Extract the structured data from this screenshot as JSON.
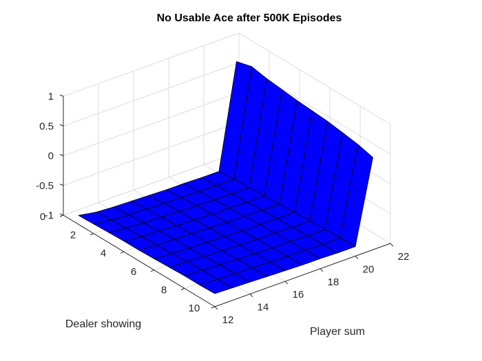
{
  "chart_data": {
    "type": "surface",
    "title": "No Usable Ace after 500K Episodes",
    "xlabel": "Dealer showing",
    "ylabel": "Player sum",
    "zlabel": "",
    "xlim": [
      0,
      10
    ],
    "ylim": [
      12,
      22
    ],
    "zlim": [
      -1,
      1
    ],
    "x_ticks": [
      0,
      2,
      4,
      6,
      8,
      10
    ],
    "y_ticks": [
      12,
      14,
      16,
      18,
      20,
      22
    ],
    "z_ticks": [
      1,
      0.5,
      0,
      -0.5,
      -1
    ],
    "z_tick_labels": [
      "1",
      "0.5",
      "0",
      "-0.5",
      "-1"
    ],
    "grid": true,
    "surface_color": "#0000ff",
    "edge_color": "#000000",
    "x": [
      1,
      2,
      3,
      4,
      5,
      6,
      7,
      8,
      9,
      10
    ],
    "y": [
      12,
      13,
      14,
      15,
      16,
      17,
      18,
      19,
      20,
      21
    ],
    "z": [
      [
        -0.85,
        -0.9,
        -0.92,
        -0.93,
        -0.94,
        -0.95,
        -0.95,
        -0.96,
        -0.96,
        0.78
      ],
      [
        -0.84,
        -0.88,
        -0.9,
        -0.91,
        -0.92,
        -0.93,
        -0.93,
        -0.94,
        -0.94,
        0.85
      ],
      [
        -0.83,
        -0.86,
        -0.88,
        -0.89,
        -0.9,
        -0.91,
        -0.92,
        -0.92,
        -0.93,
        0.8
      ],
      [
        -0.82,
        -0.85,
        -0.86,
        -0.88,
        -0.89,
        -0.9,
        -0.9,
        -0.91,
        -0.91,
        0.77
      ],
      [
        -0.82,
        -0.84,
        -0.85,
        -0.86,
        -0.87,
        -0.88,
        -0.89,
        -0.89,
        -0.9,
        0.74
      ],
      [
        -0.81,
        -0.83,
        -0.84,
        -0.85,
        -0.86,
        -0.87,
        -0.87,
        -0.88,
        -0.88,
        0.72
      ],
      [
        -0.8,
        -0.81,
        -0.83,
        -0.84,
        -0.85,
        -0.86,
        -0.86,
        -0.87,
        -0.87,
        0.7
      ],
      [
        -0.79,
        -0.8,
        -0.82,
        -0.83,
        -0.84,
        -0.85,
        -0.85,
        -0.86,
        -0.86,
        0.66
      ],
      [
        -0.79,
        -0.8,
        -0.81,
        -0.82,
        -0.83,
        -0.84,
        -0.84,
        -0.85,
        -0.85,
        0.62
      ],
      [
        -0.78,
        -0.79,
        -0.8,
        -0.81,
        -0.82,
        -0.83,
        -0.83,
        -0.84,
        -0.84,
        0.55
      ]
    ]
  }
}
